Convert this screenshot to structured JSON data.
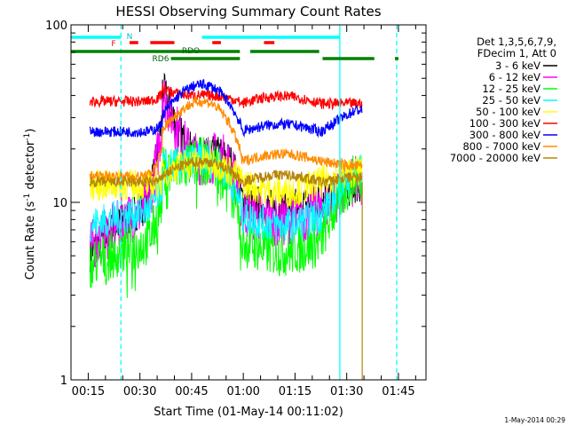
{
  "chart_data": {
    "type": "line",
    "title": "HESSI Observing Summary Count Rates",
    "xlabel": "Start Time (01-May-14 00:11:02)",
    "ylabel": "Count Rate (s",
    "ylabel_sup": "-1",
    "ylabel_tail": " detector",
    "ylabel_end": ")",
    "yscale": "log",
    "xlim": [
      10,
      48
    ],
    "ylim": [
      1,
      100
    ],
    "x_ticks": [
      {
        "label": "00:15",
        "value": 15
      },
      {
        "label": "00:30",
        "value": 30
      },
      {
        "label": "00:45",
        "value": 45
      },
      {
        "label": "01:00",
        "value": 60
      },
      {
        "label": "01:15",
        "value": 75
      },
      {
        "label": "01:30",
        "value": 90
      },
      {
        "label": "01:45",
        "value": 105
      }
    ],
    "y_ticks": [
      {
        "label": "1",
        "value": 1
      },
      {
        "label": "10",
        "value": 10
      },
      {
        "label": "100",
        "value": 100
      }
    ],
    "legend_header": [
      "Det 1,3,5,6,7,9,",
      "FDecim 1, Att 0"
    ],
    "legend_placement": "right",
    "series": [
      {
        "name": "3 - 6 keV",
        "color": "#000000",
        "values": [
          5.2,
          10.0,
          46.0,
          18.0,
          10.5,
          12.5
        ]
      },
      {
        "name": "6 - 12 keV",
        "color": "#ff00ff",
        "values": [
          5.6,
          9.5,
          44.0,
          17.5,
          9.0,
          13.0
        ]
      },
      {
        "name": "12 - 25 keV",
        "color": "#00ff00",
        "values": [
          4.5,
          6.0,
          15.0,
          17.0,
          6.0,
          14.0
        ]
      },
      {
        "name": "25 - 50 keV",
        "color": "#00ffff",
        "values": [
          7.5,
          9.0,
          16.0,
          17.5,
          8.5,
          15.0
        ]
      },
      {
        "name": "50 - 100 keV",
        "color": "#ffff00",
        "values": [
          12.5,
          12.5,
          14.5,
          17.0,
          13.0,
          15.0
        ]
      },
      {
        "name": "100 - 300 keV",
        "color": "#ff0000",
        "values": [
          37.0,
          37.0,
          44.0,
          40.0,
          36.0,
          36.0
        ]
      },
      {
        "name": "300 - 800 keV",
        "color": "#0000ff",
        "values": [
          25.0,
          25.0,
          30.0,
          46.0,
          25.0,
          33.0
        ]
      },
      {
        "name": "800 - 7000 keV",
        "color": "#ff8c00",
        "values": [
          14.0,
          14.0,
          25.0,
          37.0,
          17.0,
          16.0
        ]
      },
      {
        "name": "7000 - 20000 keV",
        "color": "#b8860b",
        "values": [
          13.0,
          13.0,
          14.0,
          17.0,
          13.0,
          14.0
        ]
      }
    ],
    "flag_bars": [
      {
        "label": "N",
        "color": "#00ffff",
        "segments": [
          [
            10,
            24.5
          ],
          [
            88,
            48
          ]
        ]
      },
      {
        "label": "F",
        "color": "#ff0000",
        "segments": [
          [
            27,
            29.5
          ],
          [
            33,
            40
          ],
          [
            51,
            53.5
          ],
          [
            66,
            69
          ]
        ]
      },
      {
        "label": "RDO",
        "color": "#008000",
        "segments": [
          [
            10,
            36
          ],
          [
            36,
            59
          ],
          [
            62,
            82
          ]
        ]
      },
      {
        "label": "RD6",
        "color": "#008000",
        "segments": [
          [
            39,
            59
          ],
          [
            83,
            98
          ],
          [
            104,
            105
          ]
        ]
      }
    ],
    "vertical_lines": [
      {
        "color": "#00ffff",
        "style": "dashed",
        "x": 24.5
      },
      {
        "color": "#00ffff",
        "style": "solid",
        "x": 88
      },
      {
        "color": "#00ffff",
        "style": "dashed",
        "x": 104.5
      }
    ]
  },
  "footer_date": "1-May-2014 00:29"
}
